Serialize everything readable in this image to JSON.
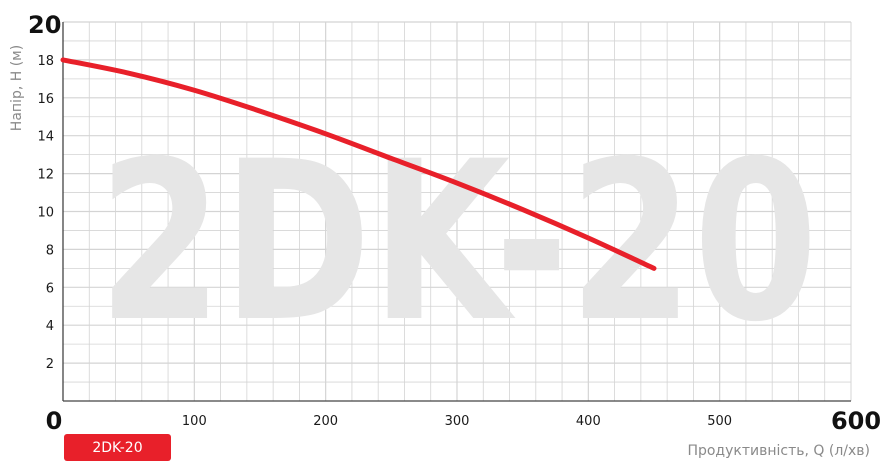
{
  "colors": {
    "curve": "#e8202a",
    "badge": "#e8202a",
    "grid": "#d4d4d4",
    "watermark": "#e6e6e6"
  },
  "chart_data": {
    "type": "line",
    "watermark": "2DK-20",
    "badge": "2DK-20",
    "xlabel": "Продуктивність, Q (л/хв)",
    "ylabel": "Напір, H (м)",
    "xlim": [
      0,
      600
    ],
    "ylim": [
      0,
      20
    ],
    "grid": true,
    "x_ticks": [
      {
        "value": 0,
        "label": "0",
        "big": true
      },
      {
        "value": 100,
        "label": "100"
      },
      {
        "value": 200,
        "label": "200"
      },
      {
        "value": 300,
        "label": "300"
      },
      {
        "value": 400,
        "label": "400"
      },
      {
        "value": 500,
        "label": "500"
      },
      {
        "value": 600,
        "label": "600",
        "big": true
      }
    ],
    "y_ticks": [
      {
        "value": 2,
        "label": "2"
      },
      {
        "value": 4,
        "label": "4"
      },
      {
        "value": 6,
        "label": "6"
      },
      {
        "value": 8,
        "label": "8"
      },
      {
        "value": 10,
        "label": "10"
      },
      {
        "value": 12,
        "label": "12"
      },
      {
        "value": 14,
        "label": "14"
      },
      {
        "value": 16,
        "label": "16"
      },
      {
        "value": 18,
        "label": "18"
      },
      {
        "value": 20,
        "label": "20",
        "big": true
      }
    ],
    "series": [
      {
        "x": [
          0,
          50,
          100,
          150,
          200,
          250,
          300,
          350,
          400,
          450
        ],
        "y": [
          18.0,
          17.3,
          16.4,
          15.3,
          14.1,
          12.8,
          11.5,
          10.1,
          8.6,
          7.0
        ]
      }
    ]
  }
}
